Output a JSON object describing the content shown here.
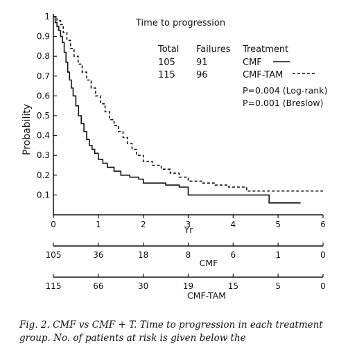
{
  "chart_data": {
    "type": "line",
    "title": "Time to progression",
    "xlabel": "Yr",
    "ylabel": "Probability",
    "xlim": [
      0,
      6
    ],
    "ylim": [
      0,
      1
    ],
    "x_ticks": [
      "0",
      "1",
      "2",
      "3",
      "4",
      "5",
      "6"
    ],
    "y_ticks": [
      "0.1",
      "0.2",
      "0.3",
      "0.4",
      "0.5",
      "0.6",
      "0.7",
      "0.8",
      "0.9",
      "1"
    ],
    "grid": false,
    "legend": {
      "headers": [
        "Total",
        "Failures",
        "Treatment"
      ],
      "rows": [
        {
          "total": "105",
          "failures": "91",
          "treatment": "CMF",
          "style": "solid"
        },
        {
          "total": "115",
          "failures": "96",
          "treatment": "CMF-TAM",
          "style": "dashed"
        }
      ],
      "stats": [
        "P=0.004 (Log-rank)",
        "P=0.001 (Breslow)"
      ]
    },
    "series": [
      {
        "name": "CMF",
        "style": "solid",
        "points": [
          [
            0,
            1.0
          ],
          [
            0.04,
            0.97
          ],
          [
            0.08,
            0.95
          ],
          [
            0.12,
            0.93
          ],
          [
            0.16,
            0.9
          ],
          [
            0.2,
            0.87
          ],
          [
            0.24,
            0.82
          ],
          [
            0.28,
            0.77
          ],
          [
            0.32,
            0.72
          ],
          [
            0.36,
            0.68
          ],
          [
            0.4,
            0.64
          ],
          [
            0.44,
            0.6
          ],
          [
            0.5,
            0.55
          ],
          [
            0.56,
            0.5
          ],
          [
            0.62,
            0.46
          ],
          [
            0.68,
            0.42
          ],
          [
            0.74,
            0.38
          ],
          [
            0.8,
            0.35
          ],
          [
            0.86,
            0.33
          ],
          [
            0.92,
            0.31
          ],
          [
            1.0,
            0.28
          ],
          [
            1.1,
            0.26
          ],
          [
            1.2,
            0.24
          ],
          [
            1.35,
            0.22
          ],
          [
            1.5,
            0.2
          ],
          [
            1.7,
            0.19
          ],
          [
            1.9,
            0.18
          ],
          [
            2.0,
            0.16
          ],
          [
            2.5,
            0.15
          ],
          [
            2.8,
            0.14
          ],
          [
            3.0,
            0.1
          ],
          [
            3.5,
            0.1
          ],
          [
            4.0,
            0.1
          ],
          [
            4.75,
            0.1
          ],
          [
            4.8,
            0.06
          ],
          [
            5.5,
            0.06
          ]
        ]
      },
      {
        "name": "CMF-TAM",
        "style": "dashed",
        "points": [
          [
            0,
            1.0
          ],
          [
            0.08,
            0.98
          ],
          [
            0.16,
            0.96
          ],
          [
            0.22,
            0.92
          ],
          [
            0.3,
            0.88
          ],
          [
            0.38,
            0.84
          ],
          [
            0.46,
            0.8
          ],
          [
            0.55,
            0.76
          ],
          [
            0.64,
            0.72
          ],
          [
            0.74,
            0.68
          ],
          [
            0.84,
            0.64
          ],
          [
            0.94,
            0.6
          ],
          [
            1.05,
            0.56
          ],
          [
            1.15,
            0.52
          ],
          [
            1.25,
            0.48
          ],
          [
            1.35,
            0.45
          ],
          [
            1.45,
            0.42
          ],
          [
            1.55,
            0.39
          ],
          [
            1.65,
            0.36
          ],
          [
            1.75,
            0.33
          ],
          [
            1.85,
            0.3
          ],
          [
            2.0,
            0.27
          ],
          [
            2.2,
            0.25
          ],
          [
            2.4,
            0.23
          ],
          [
            2.6,
            0.21
          ],
          [
            2.8,
            0.19
          ],
          [
            3.0,
            0.17
          ],
          [
            3.3,
            0.16
          ],
          [
            3.6,
            0.15
          ],
          [
            3.9,
            0.14
          ],
          [
            4.1,
            0.14
          ],
          [
            4.3,
            0.12
          ],
          [
            4.8,
            0.12
          ],
          [
            5.0,
            0.12
          ],
          [
            6.0,
            0.12
          ]
        ]
      }
    ],
    "at_risk": {
      "rows": [
        {
          "name": "CMF",
          "x": [
            0,
            1,
            2,
            3,
            4,
            5,
            6
          ],
          "values": [
            "105",
            "36",
            "18",
            "8",
            "6",
            "1",
            "0"
          ]
        },
        {
          "name": "CMF-TAM",
          "x": [
            0,
            1,
            2,
            3,
            4,
            5,
            6
          ],
          "values": [
            "115",
            "66",
            "30",
            "19",
            "15",
            "5",
            "0"
          ]
        }
      ]
    }
  },
  "caption": "Fig. 2.  CMF vs CMF + T. Time to progression in each treatment group. No. of patients at risk is given below the"
}
